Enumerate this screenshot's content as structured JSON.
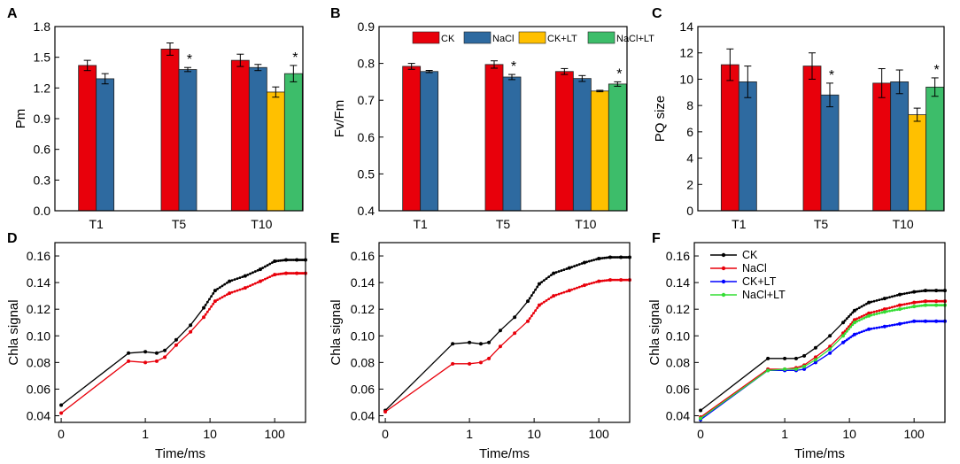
{
  "chart_data": [
    {
      "id": "A",
      "type": "bar",
      "panel_label": "A",
      "categories": [
        "T1",
        "T5",
        "T10"
      ],
      "ylabel": "Pm",
      "xlabel": "",
      "ylim": [
        0,
        1.8
      ],
      "yticks": [
        "0.0",
        "0.3",
        "0.6",
        "0.9",
        "1.2",
        "1.5",
        "1.8"
      ],
      "series": [
        {
          "name": "CK",
          "color": "#e8000b",
          "values": [
            1.42,
            1.58,
            1.47
          ],
          "errors": [
            0.05,
            0.06,
            0.06
          ]
        },
        {
          "name": "NaCl",
          "color": "#2e6aa0",
          "values": [
            1.29,
            1.38,
            1.4
          ],
          "errors": [
            0.05,
            0.02,
            0.03
          ]
        },
        {
          "name": "CK+LT",
          "color": "#ffc000",
          "values": [
            null,
            null,
            1.16
          ],
          "errors": [
            0,
            0,
            0.05
          ]
        },
        {
          "name": "NaCl+LT",
          "color": "#3dbd6a",
          "values": [
            null,
            null,
            1.34
          ],
          "errors": [
            0,
            0,
            0.08
          ]
        }
      ],
      "significance": [
        {
          "group": 1,
          "series": 1,
          "text": "*"
        },
        {
          "group": 2,
          "series": 3,
          "text": "*"
        }
      ]
    },
    {
      "id": "B",
      "type": "bar",
      "panel_label": "B",
      "categories": [
        "T1",
        "T5",
        "T10"
      ],
      "ylabel": "Fv/Fm",
      "xlabel": "",
      "ylim": [
        0.4,
        0.9
      ],
      "yticks": [
        "0.4",
        "0.5",
        "0.6",
        "0.7",
        "0.8",
        "0.9"
      ],
      "legend": [
        "CK",
        "NaCl",
        "CK+LT",
        "NaCl+LT"
      ],
      "series": [
        {
          "name": "CK",
          "color": "#e8000b",
          "values": [
            0.792,
            0.797,
            0.778
          ],
          "errors": [
            0.008,
            0.01,
            0.008
          ]
        },
        {
          "name": "NaCl",
          "color": "#2e6aa0",
          "values": [
            0.778,
            0.763,
            0.759
          ],
          "errors": [
            0.003,
            0.007,
            0.008
          ]
        },
        {
          "name": "CK+LT",
          "color": "#ffc000",
          "values": [
            null,
            null,
            0.725
          ],
          "errors": [
            0,
            0,
            0.002
          ]
        },
        {
          "name": "NaCl+LT",
          "color": "#3dbd6a",
          "values": [
            null,
            null,
            0.744
          ],
          "errors": [
            0,
            0,
            0.006
          ]
        }
      ],
      "significance": [
        {
          "group": 1,
          "series": 1,
          "text": "*"
        },
        {
          "group": 2,
          "series": 3,
          "text": "*"
        }
      ]
    },
    {
      "id": "C",
      "type": "bar",
      "panel_label": "C",
      "categories": [
        "T1",
        "T5",
        "T10"
      ],
      "ylabel": "PQ size",
      "xlabel": "",
      "ylim": [
        0,
        14
      ],
      "yticks": [
        "0",
        "2",
        "4",
        "6",
        "8",
        "10",
        "12",
        "14"
      ],
      "series": [
        {
          "name": "CK",
          "color": "#e8000b",
          "values": [
            11.1,
            11.0,
            9.7
          ],
          "errors": [
            1.2,
            1.0,
            1.1
          ]
        },
        {
          "name": "NaCl",
          "color": "#2e6aa0",
          "values": [
            9.8,
            8.8,
            9.8
          ],
          "errors": [
            1.2,
            0.9,
            0.9
          ]
        },
        {
          "name": "CK+LT",
          "color": "#ffc000",
          "values": [
            null,
            null,
            7.3
          ],
          "errors": [
            0,
            0,
            0.5
          ]
        },
        {
          "name": "NaCl+LT",
          "color": "#3dbd6a",
          "values": [
            null,
            null,
            9.4
          ],
          "errors": [
            0,
            0,
            0.7
          ]
        }
      ],
      "significance": [
        {
          "group": 1,
          "series": 1,
          "text": "*"
        },
        {
          "group": 2,
          "series": 3,
          "text": "*"
        }
      ]
    },
    {
      "id": "D",
      "type": "line",
      "panel_label": "D",
      "xlabel": "Time/ms",
      "ylabel": "Chla signal",
      "xscale": "log",
      "xlim": [
        0.04,
        300
      ],
      "ylim": [
        0.035,
        0.17
      ],
      "xticks": [
        {
          "value": 0.05,
          "label": "0"
        },
        {
          "value": 1,
          "label": "1"
        },
        {
          "value": 10,
          "label": "10"
        },
        {
          "value": 100,
          "label": "100"
        }
      ],
      "yticks": [
        "0.04",
        "0.06",
        "0.08",
        "0.10",
        "0.12",
        "0.14",
        "0.16"
      ],
      "series": [
        {
          "name": "CK",
          "color": "#000000",
          "x": [
            0.05,
            0.55,
            1,
            1.5,
            2,
            3,
            5,
            8,
            12,
            20,
            35,
            60,
            100,
            150,
            220,
            300
          ],
          "y": [
            0.048,
            0.087,
            0.088,
            0.087,
            0.089,
            0.097,
            0.108,
            0.121,
            0.134,
            0.141,
            0.145,
            0.15,
            0.156,
            0.157,
            0.157,
            0.157
          ]
        },
        {
          "name": "NaCl",
          "color": "#e8000b",
          "x": [
            0.05,
            0.55,
            1,
            1.5,
            2,
            3,
            5,
            8,
            12,
            20,
            35,
            60,
            100,
            150,
            220,
            300
          ],
          "y": [
            0.042,
            0.081,
            0.08,
            0.081,
            0.084,
            0.093,
            0.103,
            0.114,
            0.126,
            0.132,
            0.136,
            0.141,
            0.146,
            0.147,
            0.147,
            0.147
          ]
        }
      ]
    },
    {
      "id": "E",
      "type": "line",
      "panel_label": "E",
      "xlabel": "Time/ms",
      "ylabel": "Chla signal",
      "xscale": "log",
      "xlim": [
        0.04,
        300
      ],
      "ylim": [
        0.035,
        0.17
      ],
      "xticks": [
        {
          "value": 0.05,
          "label": "0"
        },
        {
          "value": 1,
          "label": "1"
        },
        {
          "value": 10,
          "label": "10"
        },
        {
          "value": 100,
          "label": "100"
        }
      ],
      "yticks": [
        "0.04",
        "0.06",
        "0.08",
        "0.10",
        "0.12",
        "0.14",
        "0.16"
      ],
      "series": [
        {
          "name": "CK",
          "color": "#000000",
          "x": [
            0.05,
            0.55,
            1,
            1.5,
            2,
            3,
            5,
            8,
            12,
            20,
            35,
            60,
            100,
            150,
            220,
            300
          ],
          "y": [
            0.044,
            0.094,
            0.095,
            0.094,
            0.095,
            0.104,
            0.114,
            0.126,
            0.139,
            0.147,
            0.151,
            0.155,
            0.158,
            0.159,
            0.159,
            0.159
          ]
        },
        {
          "name": "NaCl",
          "color": "#e8000b",
          "x": [
            0.05,
            0.55,
            1,
            1.5,
            2,
            3,
            5,
            8,
            12,
            20,
            35,
            60,
            100,
            150,
            220,
            300
          ],
          "y": [
            0.043,
            0.079,
            0.079,
            0.08,
            0.083,
            0.092,
            0.102,
            0.111,
            0.123,
            0.13,
            0.134,
            0.138,
            0.141,
            0.142,
            0.142,
            0.142
          ]
        }
      ]
    },
    {
      "id": "F",
      "type": "line",
      "panel_label": "F",
      "xlabel": "Time/ms",
      "ylabel": "Chla signal",
      "xscale": "log",
      "xlim": [
        0.04,
        300
      ],
      "ylim": [
        0.035,
        0.17
      ],
      "xticks": [
        {
          "value": 0.05,
          "label": "0"
        },
        {
          "value": 1,
          "label": "1"
        },
        {
          "value": 10,
          "label": "10"
        },
        {
          "value": 100,
          "label": "100"
        }
      ],
      "yticks": [
        "0.04",
        "0.06",
        "0.08",
        "0.10",
        "0.12",
        "0.14",
        "0.16"
      ],
      "legend": [
        "CK",
        "NaCl",
        "CK+LT",
        "NaCl+LT"
      ],
      "series": [
        {
          "name": "CK",
          "color": "#000000",
          "x": [
            0.05,
            0.55,
            1,
            1.5,
            2,
            3,
            5,
            8,
            12,
            20,
            35,
            60,
            100,
            150,
            220,
            300
          ],
          "y": [
            0.044,
            0.083,
            0.083,
            0.083,
            0.085,
            0.091,
            0.1,
            0.11,
            0.119,
            0.125,
            0.128,
            0.131,
            0.133,
            0.134,
            0.134,
            0.134
          ]
        },
        {
          "name": "NaCl",
          "color": "#e8000b",
          "x": [
            0.05,
            0.55,
            1,
            1.5,
            2,
            3,
            5,
            8,
            12,
            20,
            35,
            60,
            100,
            150,
            220,
            300
          ],
          "y": [
            0.039,
            0.075,
            0.075,
            0.076,
            0.078,
            0.084,
            0.092,
            0.102,
            0.112,
            0.117,
            0.12,
            0.123,
            0.125,
            0.126,
            0.126,
            0.126
          ]
        },
        {
          "name": "CK+LT",
          "color": "#0000ff",
          "x": [
            0.05,
            0.55,
            1,
            1.5,
            2,
            3,
            5,
            8,
            12,
            20,
            35,
            60,
            100,
            150,
            220,
            300
          ],
          "y": [
            0.037,
            0.074,
            0.074,
            0.074,
            0.075,
            0.08,
            0.087,
            0.095,
            0.101,
            0.105,
            0.107,
            0.109,
            0.111,
            0.111,
            0.111,
            0.111
          ]
        },
        {
          "name": "NaCl+LT",
          "color": "#33dd33",
          "x": [
            0.05,
            0.55,
            1,
            1.5,
            2,
            3,
            5,
            8,
            12,
            20,
            35,
            60,
            100,
            150,
            220,
            300
          ],
          "y": [
            0.038,
            0.074,
            0.075,
            0.075,
            0.077,
            0.082,
            0.09,
            0.1,
            0.11,
            0.115,
            0.118,
            0.12,
            0.122,
            0.123,
            0.123,
            0.123
          ]
        }
      ]
    }
  ]
}
